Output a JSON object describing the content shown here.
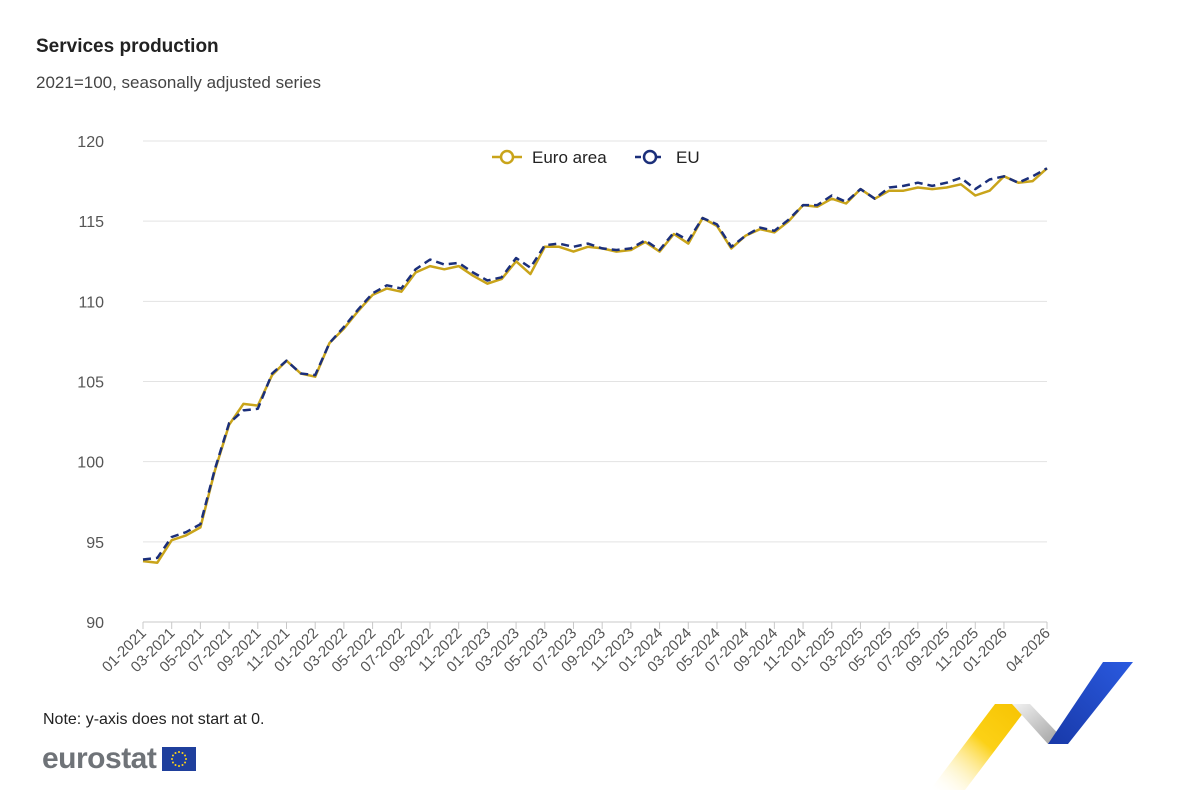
{
  "title": "Services production",
  "subtitle": "2021=100, seasonally adjusted series",
  "note": "Note: y-axis does not start at 0.",
  "brand": {
    "name": "eurostat"
  },
  "colors": {
    "euro_area": "#c9a41a",
    "eu": "#1b2f7a",
    "grid": "#e3e3e3"
  },
  "chart_data": {
    "type": "line",
    "title": "Services production",
    "subtitle": "2021=100, seasonally adjusted series",
    "xlabel": "",
    "ylabel": "",
    "ylim": [
      90,
      120
    ],
    "yticks": [
      90,
      95,
      100,
      105,
      110,
      115,
      120
    ],
    "grid": true,
    "legend": "top-center",
    "x": [
      "01-2021",
      "02-2021",
      "03-2021",
      "04-2021",
      "05-2021",
      "06-2021",
      "07-2021",
      "08-2021",
      "09-2021",
      "10-2021",
      "11-2021",
      "12-2021",
      "01-2022",
      "02-2022",
      "03-2022",
      "04-2022",
      "05-2022",
      "06-2022",
      "07-2022",
      "08-2022",
      "09-2022",
      "10-2022",
      "11-2022",
      "12-2022",
      "01-2023",
      "02-2023",
      "03-2023",
      "04-2023",
      "05-2023",
      "06-2023",
      "07-2023",
      "08-2023",
      "09-2023",
      "10-2023",
      "11-2023",
      "12-2023",
      "01-2024",
      "02-2024",
      "03-2024",
      "04-2024",
      "05-2024",
      "06-2024",
      "07-2024",
      "08-2024",
      "09-2024",
      "10-2024",
      "11-2024",
      "12-2024",
      "01-2025",
      "02-2025",
      "03-2025",
      "04-2025",
      "05-2025",
      "06-2025",
      "07-2025",
      "08-2025",
      "09-2025",
      "10-2025",
      "11-2025",
      "12-2025",
      "01-2026",
      "02-2026",
      "03-2026",
      "04-2026"
    ],
    "xtick_labels": [
      "01-2021",
      "03-2021",
      "05-2021",
      "07-2021",
      "09-2021",
      "11-2021",
      "01-2022",
      "03-2022",
      "05-2022",
      "07-2022",
      "09-2022",
      "11-2022",
      "01-2023",
      "03-2023",
      "05-2023",
      "07-2023",
      "09-2023",
      "11-2023",
      "01-2024",
      "03-2024",
      "05-2024",
      "07-2024",
      "09-2024",
      "11-2024",
      "01-2025",
      "03-2025",
      "05-2025",
      "07-2025",
      "09-2025",
      "11-2025",
      "01-2026",
      "04-2026"
    ],
    "series": [
      {
        "name": "Euro area",
        "style": "solid",
        "values": [
          93.8,
          93.7,
          95.1,
          95.4,
          95.9,
          99.4,
          102.3,
          103.6,
          103.5,
          105.4,
          106.3,
          105.5,
          105.3,
          107.4,
          108.3,
          109.4,
          110.4,
          110.8,
          110.6,
          111.8,
          112.2,
          112.0,
          112.2,
          111.6,
          111.1,
          111.4,
          112.5,
          111.7,
          113.4,
          113.4,
          113.1,
          113.4,
          113.3,
          113.1,
          113.2,
          113.7,
          113.1,
          114.2,
          113.6,
          115.2,
          114.7,
          113.3,
          114.1,
          114.5,
          114.3,
          115.0,
          116.0,
          115.9,
          116.4,
          116.1,
          117.0,
          116.4,
          116.9,
          116.9,
          117.1,
          117.0,
          117.1,
          117.3,
          116.6,
          116.9,
          117.8,
          117.4,
          117.5,
          118.3
        ]
      },
      {
        "name": "EU",
        "style": "dashed",
        "values": [
          93.9,
          94.0,
          95.3,
          95.6,
          96.1,
          99.5,
          102.4,
          103.2,
          103.3,
          105.5,
          106.3,
          105.5,
          105.4,
          107.4,
          108.4,
          109.5,
          110.5,
          111.0,
          110.8,
          112.0,
          112.6,
          112.3,
          112.4,
          111.8,
          111.3,
          111.5,
          112.7,
          112.1,
          113.5,
          113.6,
          113.4,
          113.6,
          113.3,
          113.2,
          113.3,
          113.8,
          113.2,
          114.3,
          113.8,
          115.2,
          114.8,
          113.4,
          114.1,
          114.6,
          114.4,
          115.1,
          116.0,
          116.0,
          116.6,
          116.2,
          117.0,
          116.4,
          117.1,
          117.2,
          117.4,
          117.2,
          117.4,
          117.7,
          117.0,
          117.6,
          117.8,
          117.4,
          117.8,
          118.3
        ]
      }
    ]
  }
}
